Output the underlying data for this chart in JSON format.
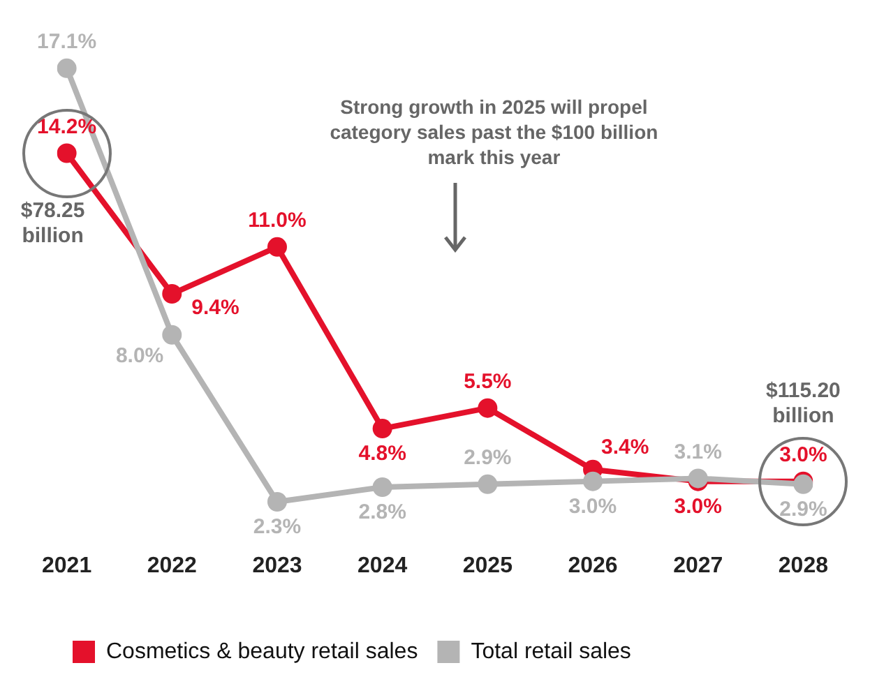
{
  "chart_data": {
    "type": "line",
    "categories": [
      "2021",
      "2022",
      "2023",
      "2024",
      "2025",
      "2026",
      "2027",
      "2028"
    ],
    "series": [
      {
        "name": "Cosmetics & beauty retail sales",
        "color": "#e4112b",
        "values": [
          14.2,
          9.4,
          11.0,
          4.8,
          5.5,
          3.4,
          3.0,
          3.0
        ],
        "value_labels": [
          "14.2%",
          "9.4%",
          "11.0%",
          "4.8%",
          "5.5%",
          "3.4%",
          "3.0%",
          "3.0%"
        ]
      },
      {
        "name": "Total retail sales",
        "color": "#b4b4b4",
        "values": [
          17.1,
          8.0,
          2.3,
          2.8,
          2.9,
          3.0,
          3.1,
          2.9
        ],
        "value_labels": [
          "17.1%",
          "8.0%",
          "2.3%",
          "2.8%",
          "2.9%",
          "3.0%",
          "3.1%",
          "2.9%"
        ]
      }
    ],
    "tick_labels": "x",
    "grid": false,
    "legend": "bottom",
    "marker": "circle",
    "line_style": "solid",
    "annotations": [
      {
        "text": "$78.25 billion",
        "x": "2021",
        "y": 14.2
      },
      "Strong growth in 2025 will propel category sales past the $100 billion mark this year",
      {
        "text": "$115.20 billion",
        "x": "2028",
        "y": 3.0
      }
    ]
  }
}
